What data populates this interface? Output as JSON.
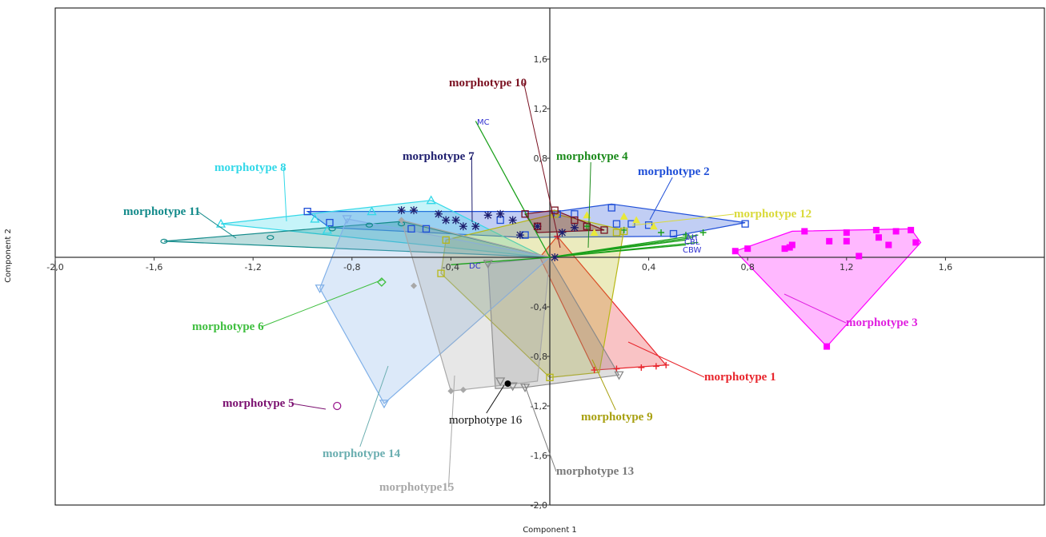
{
  "chart_data": {
    "type": "scatter",
    "xlabel": "Component 1",
    "ylabel": "Component 2",
    "xlim": [
      -2.0,
      2.0
    ],
    "ylim": [
      -2.0,
      2.0
    ],
    "x_ticks": [
      "-2,0",
      "-1,6",
      "-1,2",
      "-0,8",
      "-0,4",
      "0,4",
      "0,8",
      "1,2",
      "1,6"
    ],
    "y_ticks": [
      "1,6",
      "1,2",
      "0,8",
      "-0,4",
      "-0,8",
      "-1,2",
      "-1,6",
      "-2,0"
    ],
    "grid": false,
    "series": [
      {
        "name": "morphotype 1",
        "color": "#e8262d",
        "marker": "plus",
        "label_color": "#e8262d",
        "points": [
          [
            0.47,
            -0.87
          ],
          [
            0.43,
            -0.88
          ],
          [
            0.37,
            -0.89
          ],
          [
            0.27,
            -0.9
          ],
          [
            0.18,
            -0.91
          ],
          [
            0.03,
            0.17
          ]
        ],
        "hull": [
          [
            0.03,
            0.17
          ],
          [
            0.47,
            -0.87
          ],
          [
            0.18,
            -0.91
          ],
          [
            -0.04,
            0.0
          ]
        ]
      },
      {
        "name": "morphotype 2",
        "color": "#1f4fd8",
        "marker": "square",
        "label_color": "#1f4fd8",
        "points": [
          [
            -0.98,
            0.37
          ],
          [
            -0.89,
            0.28
          ],
          [
            -0.56,
            0.23
          ],
          [
            -0.5,
            0.23
          ],
          [
            -0.2,
            0.3
          ],
          [
            -0.1,
            0.18
          ],
          [
            0.03,
            0.35
          ],
          [
            0.25,
            0.4
          ],
          [
            0.27,
            0.27
          ],
          [
            0.33,
            0.27
          ],
          [
            0.4,
            0.26
          ],
          [
            0.5,
            0.19
          ],
          [
            0.79,
            0.27
          ],
          [
            0.1,
            0.35
          ]
        ],
        "hull": [
          [
            -0.98,
            0.37
          ],
          [
            0.03,
            0.37
          ],
          [
            0.25,
            0.43
          ],
          [
            0.79,
            0.28
          ],
          [
            0.5,
            0.17
          ],
          [
            -0.1,
            0.16
          ],
          [
            -0.89,
            0.24
          ]
        ]
      },
      {
        "name": "morphotype 3",
        "color": "#ff00ff",
        "marker": "square_filled",
        "label_color": "#e020e0",
        "points": [
          [
            1.46,
            0.22
          ],
          [
            1.48,
            0.12
          ],
          [
            1.32,
            0.22
          ],
          [
            1.4,
            0.21
          ],
          [
            1.37,
            0.1
          ],
          [
            1.33,
            0.16
          ],
          [
            1.13,
            0.13
          ],
          [
            1.2,
            0.2
          ],
          [
            1.2,
            0.13
          ],
          [
            1.03,
            0.21
          ],
          [
            1.25,
            0.01
          ],
          [
            1.12,
            -0.72
          ],
          [
            0.75,
            0.05
          ],
          [
            0.8,
            0.07
          ],
          [
            0.95,
            0.07
          ],
          [
            0.97,
            0.08
          ],
          [
            0.98,
            0.1
          ]
        ],
        "hull": [
          [
            0.75,
            0.05
          ],
          [
            0.98,
            0.21
          ],
          [
            1.46,
            0.23
          ],
          [
            1.5,
            0.12
          ],
          [
            1.12,
            -0.72
          ]
        ]
      },
      {
        "name": "morphotype 4",
        "color": "#1aa01a",
        "marker": "plus",
        "label_color": "#1a8a1a",
        "points": [
          [
            0.15,
            0.25
          ],
          [
            0.3,
            0.22
          ],
          [
            0.45,
            0.2
          ],
          [
            0.55,
            0.18
          ],
          [
            0.62,
            0.2
          ]
        ],
        "hull": []
      },
      {
        "name": "morphotype 5",
        "color": "#9b1c8f",
        "marker": "circle",
        "label_color": "#7b1070",
        "points": [
          [
            -0.86,
            -1.2
          ]
        ],
        "hull": []
      },
      {
        "name": "morphotype 6",
        "color": "#3fbf3f",
        "marker": "diamond",
        "label_color": "#3fbf3f",
        "points": [
          [
            -0.68,
            -0.2
          ]
        ],
        "hull": []
      },
      {
        "name": "morphotype 7",
        "color": "#1e1e6e",
        "marker": "asterisk",
        "label_color": "#1e1e6e",
        "points": [
          [
            -0.6,
            0.38
          ],
          [
            -0.55,
            0.38
          ],
          [
            -0.45,
            0.35
          ],
          [
            -0.42,
            0.3
          ],
          [
            -0.38,
            0.3
          ],
          [
            -0.35,
            0.25
          ],
          [
            -0.3,
            0.25
          ],
          [
            -0.25,
            0.34
          ],
          [
            -0.2,
            0.35
          ],
          [
            -0.15,
            0.3
          ],
          [
            -0.12,
            0.18
          ],
          [
            -0.05,
            0.25
          ],
          [
            0.05,
            0.2
          ],
          [
            0.1,
            0.24
          ],
          [
            0.02,
            0.0
          ]
        ],
        "hull": []
      },
      {
        "name": "morphotype 8",
        "color": "#33d8e8",
        "marker": "triangle",
        "label_color": "#33d8e8",
        "points": [
          [
            -1.33,
            0.27
          ],
          [
            -0.95,
            0.31
          ],
          [
            -0.9,
            0.22
          ],
          [
            -0.72,
            0.37
          ],
          [
            -0.48,
            0.46
          ]
        ],
        "hull": [
          [
            -1.33,
            0.27
          ],
          [
            -0.48,
            0.46
          ],
          [
            -0.02,
            0.0
          ]
        ]
      },
      {
        "name": "morphotype 9",
        "color": "#b8b817",
        "marker": "square",
        "label_color": "#a8a010",
        "points": [
          [
            -0.44,
            -0.13
          ],
          [
            -0.42,
            0.14
          ],
          [
            0.0,
            -0.97
          ],
          [
            0.27,
            0.2
          ],
          [
            0.3,
            0.21
          ],
          [
            0.02,
            0.35
          ]
        ],
        "hull": [
          [
            -0.44,
            -0.13
          ],
          [
            -0.42,
            0.14
          ],
          [
            0.02,
            0.35
          ],
          [
            0.3,
            0.22
          ],
          [
            0.2,
            -0.93
          ],
          [
            0.0,
            -0.97
          ]
        ]
      },
      {
        "name": "morphotype 10",
        "color": "#7a1020",
        "marker": "square",
        "label_color": "#7a1020",
        "points": [
          [
            -0.1,
            0.35
          ],
          [
            -0.05,
            0.25
          ],
          [
            0.02,
            0.38
          ],
          [
            0.1,
            0.3
          ],
          [
            0.15,
            0.25
          ],
          [
            0.22,
            0.22
          ]
        ],
        "hull": [
          [
            -0.1,
            0.35
          ],
          [
            0.02,
            0.38
          ],
          [
            0.22,
            0.22
          ],
          [
            -0.05,
            0.2
          ]
        ]
      },
      {
        "name": "morphotype 11",
        "color": "#128a8a",
        "marker": "ellipse",
        "label_color": "#128a8a",
        "points": [
          [
            -1.56,
            0.13
          ],
          [
            -1.13,
            0.16
          ],
          [
            -0.88,
            0.23
          ],
          [
            -0.73,
            0.26
          ],
          [
            -0.6,
            0.27
          ]
        ],
        "hull": [
          [
            -1.56,
            0.13
          ],
          [
            -0.6,
            0.29
          ],
          [
            0.0,
            0.0
          ]
        ]
      },
      {
        "name": "morphotype 12",
        "color": "#e8e83a",
        "marker": "triangle_filled",
        "label_color": "#dada3a",
        "points": [
          [
            0.15,
            0.34
          ],
          [
            0.3,
            0.33
          ],
          [
            0.35,
            0.3
          ],
          [
            0.42,
            0.25
          ],
          [
            0.18,
            0.2
          ]
        ],
        "hull": []
      },
      {
        "name": "morphotype 13",
        "color": "#8a8a8a",
        "marker": "triangle_down",
        "label_color": "#7a7a7a",
        "points": [
          [
            -0.2,
            -1.0
          ],
          [
            -0.1,
            -1.05
          ],
          [
            -0.25,
            -0.05
          ],
          [
            0.28,
            -0.95
          ],
          [
            -0.15,
            -1.04
          ]
        ],
        "hull": [
          [
            -0.25,
            -0.05
          ],
          [
            0.0,
            0.0
          ],
          [
            0.28,
            -0.95
          ],
          [
            -0.1,
            -1.05
          ],
          [
            -0.22,
            -1.06
          ]
        ]
      },
      {
        "name": "morphotype 14",
        "color": "#80b0e8",
        "marker": "triangle_down",
        "label_color": "#6aaeb0",
        "points": [
          [
            -0.82,
            0.31
          ],
          [
            -0.93,
            -0.25
          ],
          [
            -0.67,
            -1.18
          ]
        ],
        "hull": [
          [
            -0.93,
            -0.25
          ],
          [
            -0.82,
            0.31
          ],
          [
            0.0,
            0.0
          ],
          [
            -0.67,
            -1.18
          ]
        ]
      },
      {
        "name": "morphotype15",
        "color": "#a8a8a8",
        "marker": "diamond_filled",
        "label_color": "#a8a8a8",
        "points": [
          [
            -0.55,
            -0.23
          ],
          [
            -0.4,
            -1.08
          ],
          [
            -0.35,
            -1.07
          ],
          [
            -0.6,
            0.3
          ]
        ],
        "hull": [
          [
            -0.6,
            0.3
          ],
          [
            0.0,
            0.0
          ],
          [
            -0.05,
            -1.0
          ],
          [
            -0.4,
            -1.08
          ]
        ]
      },
      {
        "name": "morphotype 16",
        "color": "#000000",
        "marker": "dot",
        "label_color": "#111111",
        "points": [
          [
            -0.17,
            -1.02
          ]
        ],
        "hull": []
      }
    ],
    "variable_labels": [
      {
        "text": "MC",
        "color": "#3030d0"
      },
      {
        "text": "DC",
        "color": "#3030d0"
      },
      {
        "text": "CBL",
        "color": "#3030d0"
      },
      {
        "text": "CBW",
        "color": "#3030d0"
      },
      {
        "text": "AH",
        "color": "#3030d0"
      }
    ]
  }
}
